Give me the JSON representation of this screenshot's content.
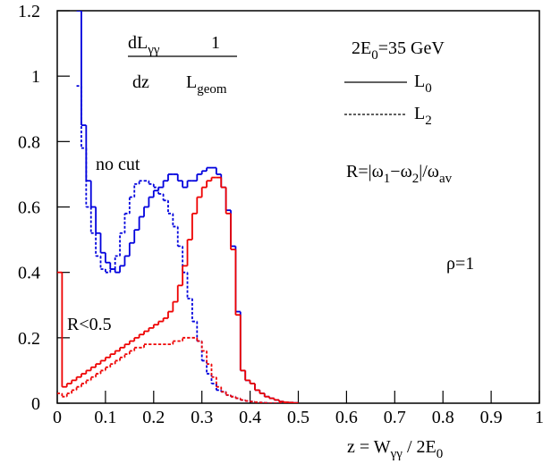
{
  "chart_data": {
    "type": "histogram",
    "bins": [
      0,
      0.01,
      0.02,
      0.03,
      0.04,
      0.05,
      0.06,
      0.07,
      0.08,
      0.09,
      0.1,
      0.11,
      0.12,
      0.13,
      0.14,
      0.15,
      0.16,
      0.17,
      0.18,
      0.19,
      0.2,
      0.21,
      0.22,
      0.23,
      0.24,
      0.25,
      0.26,
      0.27,
      0.28,
      0.29,
      0.3,
      0.31,
      0.32,
      0.33,
      0.34,
      0.35,
      0.36,
      0.37,
      0.38,
      0.39,
      0.4,
      0.41,
      0.42,
      0.43,
      0.44,
      0.45,
      0.46,
      0.47,
      0.48,
      0.49,
      0.5
    ],
    "series": [
      {
        "color": "#0000dd",
        "dashed": false,
        "values": [
          null,
          null,
          null,
          null,
          1.2,
          0.85,
          0.68,
          0.6,
          0.52,
          0.46,
          0.43,
          0.41,
          0.4,
          0.42,
          0.45,
          0.49,
          0.53,
          0.57,
          0.6,
          0.63,
          0.65,
          0.66,
          0.68,
          0.7,
          0.7,
          0.68,
          0.66,
          0.68,
          0.68,
          0.7,
          0.71,
          0.72,
          0.72,
          0.7,
          0.66,
          0.59,
          0.48,
          0.28,
          0.1,
          0.07,
          0.06,
          0.04,
          0.03,
          0.02,
          0.015,
          0.01,
          0.005,
          0.003,
          0.002,
          0.001
        ]
      },
      {
        "color": "#0000dd",
        "dashed": true,
        "values": [
          null,
          null,
          null,
          null,
          0.97,
          0.78,
          0.6,
          0.52,
          0.45,
          0.41,
          0.4,
          0.41,
          0.45,
          0.52,
          0.58,
          0.63,
          0.67,
          0.68,
          0.68,
          0.67,
          0.66,
          0.64,
          0.62,
          0.58,
          0.54,
          0.48,
          0.4,
          0.32,
          0.25,
          0.19,
          0.13,
          0.09,
          0.06,
          0.04,
          0.035,
          0.025,
          0.02,
          0.015,
          0.01,
          0.007,
          0.005,
          0.003,
          0.002,
          0.001,
          0,
          0,
          0,
          0,
          0,
          0
        ]
      },
      {
        "color": "#ee0000",
        "dashed": false,
        "values": [
          0.4,
          0.05,
          0.06,
          0.07,
          0.08,
          0.09,
          0.1,
          0.11,
          0.12,
          0.13,
          0.14,
          0.15,
          0.16,
          0.17,
          0.18,
          0.19,
          0.2,
          0.21,
          0.22,
          0.23,
          0.24,
          0.25,
          0.26,
          0.28,
          0.31,
          0.36,
          0.42,
          0.5,
          0.58,
          0.63,
          0.66,
          0.68,
          0.69,
          0.69,
          0.66,
          0.58,
          0.47,
          0.27,
          0.1,
          0.07,
          0.06,
          0.04,
          0.03,
          0.02,
          0.015,
          0.01,
          0.005,
          0.003,
          0.002,
          0.001
        ]
      },
      {
        "color": "#ee0000",
        "dashed": true,
        "values": [
          0.03,
          0.02,
          0.03,
          0.04,
          0.05,
          0.06,
          0.07,
          0.08,
          0.09,
          0.1,
          0.11,
          0.12,
          0.13,
          0.14,
          0.15,
          0.16,
          0.17,
          0.17,
          0.18,
          0.18,
          0.18,
          0.18,
          0.18,
          0.18,
          0.19,
          0.19,
          0.2,
          0.2,
          0.2,
          0.19,
          0.16,
          0.12,
          0.08,
          0.05,
          0.035,
          0.025,
          0.02,
          0.015,
          0.01,
          0.007,
          0.005,
          0.003,
          0.002,
          0.001,
          0,
          0,
          0,
          0,
          0,
          0
        ]
      }
    ],
    "xlim": [
      0,
      1
    ],
    "ylim": [
      0,
      1.2
    ],
    "xticks": [
      0,
      0.1,
      0.2,
      0.3,
      0.4,
      0.5,
      0.6,
      0.7,
      0.8,
      0.9,
      1
    ],
    "yticks": [
      0,
      0.2,
      0.4,
      0.6,
      0.8,
      1,
      1.2
    ],
    "x_label": [
      "z = W",
      "γγ",
      " / 2E",
      "0"
    ],
    "formula": {
      "num1": [
        "dL",
        "γγ"
      ],
      "den1": [
        "dz"
      ],
      "num2": [
        "1"
      ],
      "den2": [
        "L",
        "geom"
      ]
    },
    "energy": [
      "2E",
      "0",
      "=35 GeV"
    ],
    "legend": [
      {
        "label": [
          "L",
          "0"
        ],
        "dashed": false
      },
      {
        "label": [
          "L",
          "2"
        ],
        "dashed": true
      }
    ],
    "r_definition": [
      "R=|ω",
      "1",
      "−ω",
      "2",
      "|/ω",
      "av"
    ],
    "rho": [
      "ρ=1"
    ],
    "label_no_cut": [
      "no cut"
    ],
    "label_r_cut": [
      "R<0.5"
    ]
  }
}
